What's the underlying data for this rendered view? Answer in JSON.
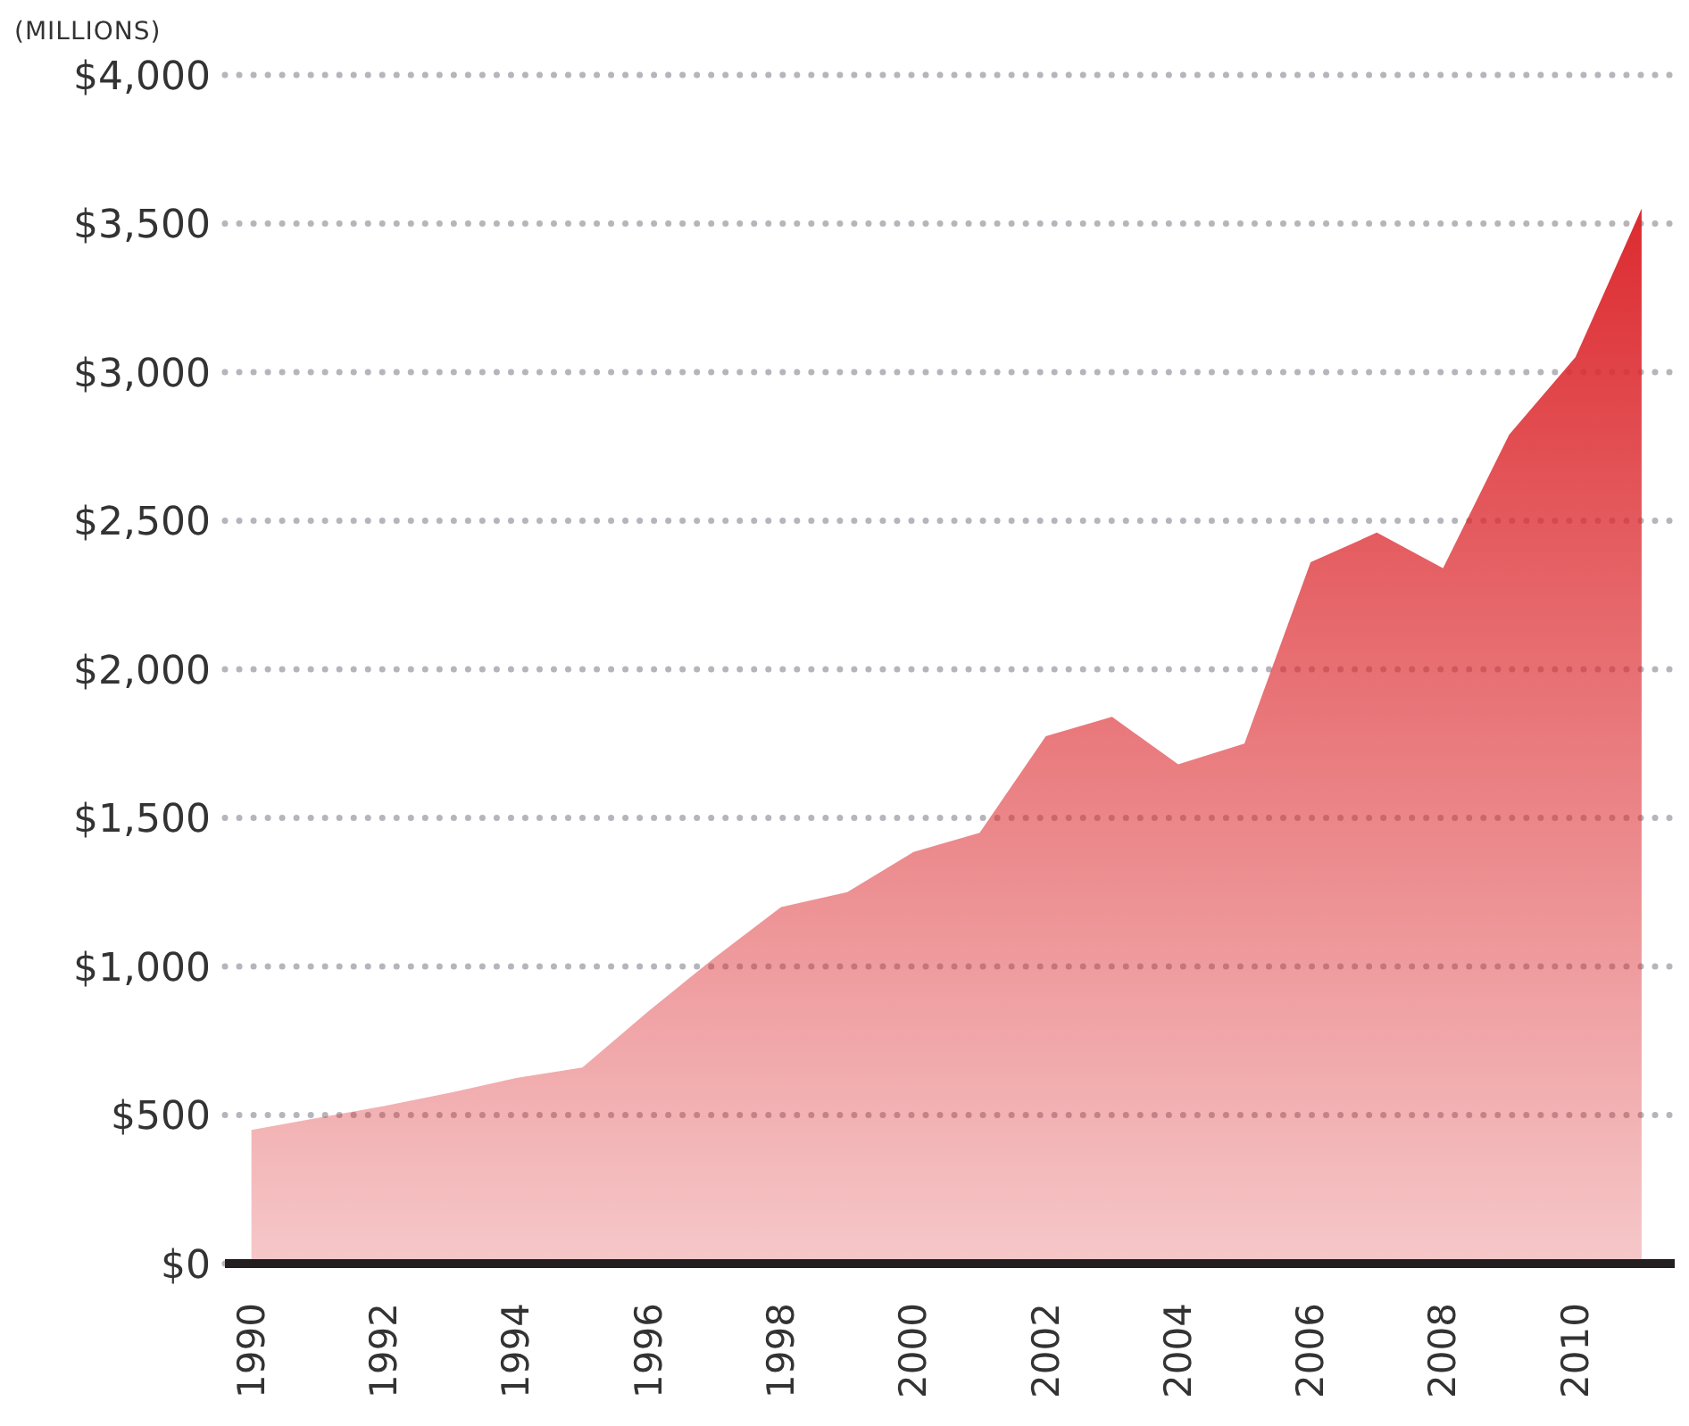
{
  "chart_data": {
    "type": "area",
    "ylabel": "(MILLIONS)",
    "x": [
      1990,
      1991,
      1992,
      1993,
      1994,
      1995,
      1996,
      1997,
      1998,
      1999,
      2000,
      2001,
      2002,
      2003,
      2004,
      2005,
      2006,
      2007,
      2008,
      2009,
      2010,
      2011
    ],
    "series": [
      {
        "color": "#dc2b30",
        "values": [
          450,
          490,
          530,
          575,
          625,
          660,
          850,
          1030,
          1200,
          1250,
          1385,
          1450,
          1775,
          1840,
          1680,
          1750,
          2360,
          2460,
          2340,
          2790,
          3050,
          3550
        ]
      }
    ],
    "xlim": [
      1989.6,
      2011.5
    ],
    "xticks": [
      1990,
      1992,
      1994,
      1996,
      1998,
      2000,
      2002,
      2004,
      2006,
      2008,
      2010
    ],
    "ylim": [
      0,
      4000
    ],
    "yticks": [
      {
        "value": 0,
        "label": "$0"
      },
      {
        "value": 500,
        "label": "$500"
      },
      {
        "value": 1000,
        "label": "$1,000"
      },
      {
        "value": 1500,
        "label": "$1,500"
      },
      {
        "value": 2000,
        "label": "$2,000"
      },
      {
        "value": 2500,
        "label": "$2,500"
      },
      {
        "value": 3000,
        "label": "$3,000"
      },
      {
        "value": 3500,
        "label": "$3,500"
      },
      {
        "value": 4000,
        "label": "$4,000"
      }
    ],
    "grid": "y",
    "marker": "none"
  }
}
